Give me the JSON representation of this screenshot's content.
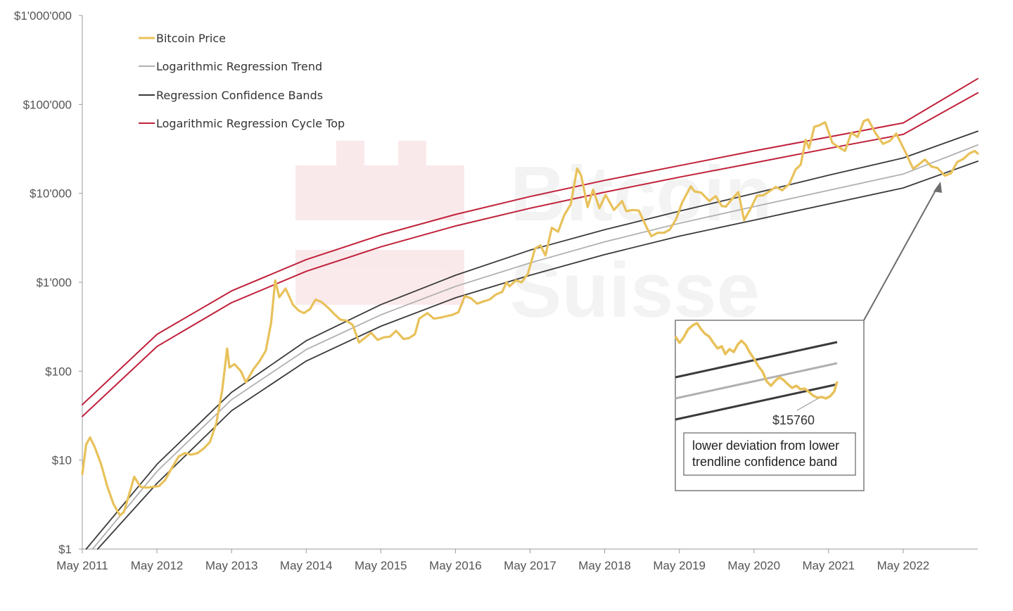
{
  "chart_data": {
    "type": "line",
    "title": "",
    "xlabel": "",
    "ylabel": "",
    "y_scale": "log",
    "ylim": [
      1,
      1000000
    ],
    "xlim": [
      "2011-05-01",
      "2023-05-01"
    ],
    "y_ticks": [
      "$1",
      "$10",
      "$100",
      "$1'000",
      "$10'000",
      "$100'000",
      "$1'000'000"
    ],
    "x_ticks": [
      "May 2011",
      "May 2012",
      "May 2013",
      "May 2014",
      "May 2015",
      "May 2016",
      "May 2017",
      "May 2018",
      "May 2019",
      "May 2020",
      "May 2021",
      "May 2022"
    ],
    "legend_position": "top-left",
    "grid": false,
    "series": [
      {
        "name": "Bitcoin Price",
        "color": "#e8c15a",
        "points": [
          [
            "2011-05-01",
            7
          ],
          [
            "2011-05-20",
            15
          ],
          [
            "2011-06-08",
            18
          ],
          [
            "2011-07-01",
            14
          ],
          [
            "2011-08-01",
            9
          ],
          [
            "2011-09-01",
            5
          ],
          [
            "2011-10-01",
            3.2
          ],
          [
            "2011-11-01",
            2.4
          ],
          [
            "2011-11-20",
            2.6
          ],
          [
            "2011-12-15",
            4
          ],
          [
            "2012-01-10",
            6.5
          ],
          [
            "2012-02-10",
            5
          ],
          [
            "2012-03-10",
            4.9
          ],
          [
            "2012-04-10",
            5
          ],
          [
            "2012-05-10",
            5.1
          ],
          [
            "2012-06-10",
            6
          ],
          [
            "2012-07-10",
            8
          ],
          [
            "2012-08-15",
            11
          ],
          [
            "2012-09-15",
            12
          ],
          [
            "2012-10-15",
            11.5
          ],
          [
            "2012-11-15",
            12
          ],
          [
            "2012-12-15",
            13.5
          ],
          [
            "2013-01-15",
            16
          ],
          [
            "2013-02-15",
            26
          ],
          [
            "2013-03-15",
            60
          ],
          [
            "2013-04-09",
            180
          ],
          [
            "2013-04-20",
            110
          ],
          [
            "2013-05-15",
            120
          ],
          [
            "2013-06-15",
            100
          ],
          [
            "2013-07-10",
            75
          ],
          [
            "2013-08-15",
            105
          ],
          [
            "2013-09-15",
            130
          ],
          [
            "2013-10-15",
            170
          ],
          [
            "2013-11-10",
            350
          ],
          [
            "2013-11-30",
            1050
          ],
          [
            "2013-12-20",
            680
          ],
          [
            "2014-01-20",
            850
          ],
          [
            "2014-02-25",
            560
          ],
          [
            "2014-03-25",
            480
          ],
          [
            "2014-04-20",
            450
          ],
          [
            "2014-05-20",
            500
          ],
          [
            "2014-06-15",
            640
          ],
          [
            "2014-07-15",
            600
          ],
          [
            "2014-08-15",
            520
          ],
          [
            "2014-09-15",
            440
          ],
          [
            "2014-10-15",
            380
          ],
          [
            "2014-11-15",
            370
          ],
          [
            "2014-12-15",
            330
          ],
          [
            "2015-01-14",
            210
          ],
          [
            "2015-02-15",
            240
          ],
          [
            "2015-03-15",
            270
          ],
          [
            "2015-04-15",
            225
          ],
          [
            "2015-05-15",
            240
          ],
          [
            "2015-06-15",
            245
          ],
          [
            "2015-07-15",
            285
          ],
          [
            "2015-08-20",
            230
          ],
          [
            "2015-09-15",
            235
          ],
          [
            "2015-10-15",
            260
          ],
          [
            "2015-11-05",
            390
          ],
          [
            "2015-12-15",
            450
          ],
          [
            "2016-01-15",
            390
          ],
          [
            "2016-02-15",
            400
          ],
          [
            "2016-03-15",
            415
          ],
          [
            "2016-04-15",
            430
          ],
          [
            "2016-05-15",
            460
          ],
          [
            "2016-06-15",
            700
          ],
          [
            "2016-07-15",
            660
          ],
          [
            "2016-08-15",
            575
          ],
          [
            "2016-09-15",
            610
          ],
          [
            "2016-10-15",
            640
          ],
          [
            "2016-11-15",
            730
          ],
          [
            "2016-12-15",
            780
          ],
          [
            "2017-01-05",
            1000
          ],
          [
            "2017-01-20",
            900
          ],
          [
            "2017-02-20",
            1050
          ],
          [
            "2017-03-20",
            1000
          ],
          [
            "2017-04-20",
            1250
          ],
          [
            "2017-05-25",
            2400
          ],
          [
            "2017-06-20",
            2600
          ],
          [
            "2017-07-15",
            2000
          ],
          [
            "2017-08-15",
            4100
          ],
          [
            "2017-09-15",
            3700
          ],
          [
            "2017-10-15",
            5700
          ],
          [
            "2017-11-15",
            7500
          ],
          [
            "2017-12-17",
            19000
          ],
          [
            "2018-01-05",
            16000
          ],
          [
            "2018-02-06",
            7000
          ],
          [
            "2018-03-05",
            11000
          ],
          [
            "2018-04-05",
            6800
          ],
          [
            "2018-05-05",
            9600
          ],
          [
            "2018-06-15",
            6500
          ],
          [
            "2018-07-25",
            8200
          ],
          [
            "2018-08-15",
            6300
          ],
          [
            "2018-09-15",
            6500
          ],
          [
            "2018-10-15",
            6400
          ],
          [
            "2018-11-25",
            4000
          ],
          [
            "2018-12-15",
            3300
          ],
          [
            "2019-01-15",
            3600
          ],
          [
            "2019-02-15",
            3600
          ],
          [
            "2019-03-15",
            3900
          ],
          [
            "2019-04-15",
            5100
          ],
          [
            "2019-05-15",
            7900
          ],
          [
            "2019-06-26",
            12000
          ],
          [
            "2019-07-15",
            10500
          ],
          [
            "2019-08-15",
            10200
          ],
          [
            "2019-09-25",
            8200
          ],
          [
            "2019-10-26",
            9300
          ],
          [
            "2019-11-25",
            7200
          ],
          [
            "2019-12-15",
            7100
          ],
          [
            "2020-01-15",
            8700
          ],
          [
            "2020-02-14",
            10300
          ],
          [
            "2020-03-13",
            5000
          ],
          [
            "2020-04-15",
            6800
          ],
          [
            "2020-05-15",
            9400
          ],
          [
            "2020-06-15",
            9500
          ],
          [
            "2020-07-27",
            11000
          ],
          [
            "2020-08-15",
            11800
          ],
          [
            "2020-09-15",
            10800
          ],
          [
            "2020-10-21",
            12800
          ],
          [
            "2020-11-20",
            18500
          ],
          [
            "2020-12-15",
            21000
          ],
          [
            "2021-01-08",
            40000
          ],
          [
            "2021-01-25",
            32000
          ],
          [
            "2021-02-20",
            56000
          ],
          [
            "2021-03-15",
            58000
          ],
          [
            "2021-04-14",
            63000
          ],
          [
            "2021-05-19",
            37000
          ],
          [
            "2021-06-20",
            33000
          ],
          [
            "2021-07-20",
            30000
          ],
          [
            "2021-08-20",
            48000
          ],
          [
            "2021-09-20",
            43000
          ],
          [
            "2021-10-20",
            65000
          ],
          [
            "2021-11-10",
            68000
          ],
          [
            "2021-12-15",
            48000
          ],
          [
            "2022-01-22",
            36000
          ],
          [
            "2022-02-25",
            39000
          ],
          [
            "2022-03-28",
            47000
          ],
          [
            "2022-05-12",
            29000
          ],
          [
            "2022-06-18",
            19000
          ],
          [
            "2022-07-15",
            21000
          ],
          [
            "2022-08-15",
            24000
          ],
          [
            "2022-09-15",
            20000
          ],
          [
            "2022-10-15",
            19300
          ],
          [
            "2022-11-21",
            15760
          ],
          [
            "2022-12-20",
            16800
          ],
          [
            "2023-01-20",
            22500
          ],
          [
            "2023-02-20",
            24500
          ],
          [
            "2023-03-20",
            28000
          ],
          [
            "2023-04-15",
            30000
          ],
          [
            "2023-05-01",
            28000
          ]
        ]
      },
      {
        "name": "Logarithmic Regression Trend",
        "color": "#b0b0b0",
        "points": [
          [
            "2011-06-20",
            1
          ],
          [
            "2012-05-01",
            7.5
          ],
          [
            "2013-05-01",
            48
          ],
          [
            "2014-05-01",
            175
          ],
          [
            "2015-05-01",
            430
          ],
          [
            "2016-05-01",
            900
          ],
          [
            "2017-05-01",
            1650
          ],
          [
            "2018-05-01",
            2850
          ],
          [
            "2019-05-01",
            4600
          ],
          [
            "2020-05-01",
            7100
          ],
          [
            "2021-05-01",
            10800
          ],
          [
            "2022-05-01",
            16500
          ],
          [
            "2023-05-01",
            35000
          ]
        ]
      },
      {
        "name": "Regression Confidence Bands",
        "color": "#3a3a3a",
        "bands": [
          [
            [
              "2011-05-20",
              1
            ],
            [
              "2012-05-01",
              9
            ],
            [
              "2013-05-01",
              58
            ],
            [
              "2014-05-01",
              220
            ],
            [
              "2015-05-01",
              560
            ],
            [
              "2016-05-01",
              1200
            ],
            [
              "2017-05-01",
              2300
            ],
            [
              "2018-05-01",
              3900
            ],
            [
              "2019-05-01",
              6300
            ],
            [
              "2020-05-01",
              10000
            ],
            [
              "2021-05-01",
              16000
            ],
            [
              "2022-05-01",
              25000
            ],
            [
              "2023-05-01",
              50000
            ]
          ],
          [
            [
              "2011-07-15",
              1
            ],
            [
              "2012-05-01",
              5.5
            ],
            [
              "2013-05-01",
              36
            ],
            [
              "2014-05-01",
              130
            ],
            [
              "2015-05-01",
              320
            ],
            [
              "2016-05-01",
              670
            ],
            [
              "2017-05-01",
              1200
            ],
            [
              "2018-05-01",
              2050
            ],
            [
              "2019-05-01",
              3300
            ],
            [
              "2020-05-01",
              5000
            ],
            [
              "2021-05-01",
              7600
            ],
            [
              "2022-05-01",
              11500
            ],
            [
              "2023-05-01",
              23000
            ]
          ]
        ]
      },
      {
        "name": "Logarithmic Regression Cycle Top",
        "color": "#c0223b",
        "bands": [
          [
            [
              "2011-05-01",
              42
            ],
            [
              "2012-05-01",
              260
            ],
            [
              "2013-05-01",
              800
            ],
            [
              "2014-05-01",
              1800
            ],
            [
              "2015-05-01",
              3400
            ],
            [
              "2016-05-01",
              5800
            ],
            [
              "2017-05-01",
              9200
            ],
            [
              "2018-05-01",
              14000
            ],
            [
              "2019-05-01",
              20500
            ],
            [
              "2020-05-01",
              30000
            ],
            [
              "2021-05-01",
              43000
            ],
            [
              "2022-05-01",
              62000
            ],
            [
              "2023-05-01",
              195000
            ]
          ],
          [
            [
              "2011-05-01",
              31
            ],
            [
              "2012-05-01",
              190
            ],
            [
              "2013-05-01",
              590
            ],
            [
              "2014-05-01",
              1330
            ],
            [
              "2015-05-01",
              2500
            ],
            [
              "2016-05-01",
              4300
            ],
            [
              "2017-05-01",
              6800
            ],
            [
              "2018-05-01",
              10300
            ],
            [
              "2019-05-01",
              15200
            ],
            [
              "2020-05-01",
              22000
            ],
            [
              "2021-05-01",
              32000
            ],
            [
              "2022-05-01",
              46000
            ],
            [
              "2023-05-01",
              135000
            ]
          ]
        ]
      }
    ],
    "annotations": [
      {
        "text": "$15760",
        "date": "2022-11-21",
        "value": 15760
      },
      {
        "text": "lower deviation from lower trendline confidence band"
      }
    ]
  },
  "legend": {
    "items": [
      {
        "label": "Bitcoin Price",
        "color": "#e8c15a"
      },
      {
        "label": "Logarithmic Regression Trend",
        "color": "#b0b0b0"
      },
      {
        "label": "Regression Confidence Bands",
        "color": "#3a3a3a"
      },
      {
        "label": "Logarithmic Regression Cycle Top",
        "color": "#c0223b"
      }
    ]
  },
  "inset": {
    "value_label": "$15760",
    "note_line1": "lower deviation from lower",
    "note_line2": "trendline confidence band"
  },
  "watermark": {
    "line1": "Bitcoin",
    "line2": "Suisse"
  }
}
